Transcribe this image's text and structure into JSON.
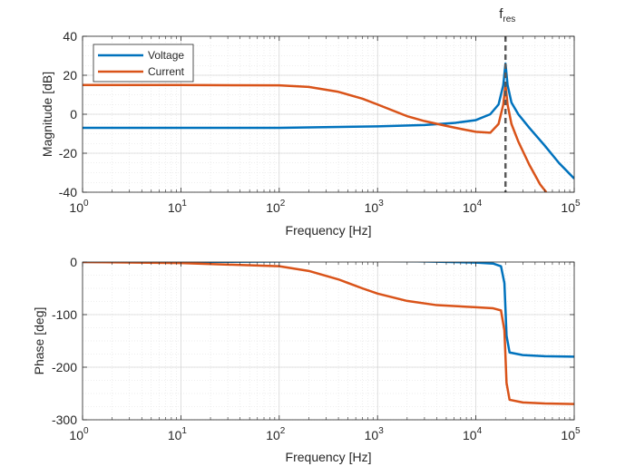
{
  "chart_data": [
    {
      "type": "line",
      "id": "magnitude",
      "xscale": "log",
      "xlim": [
        1,
        100000
      ],
      "ylim": [
        -40,
        40
      ],
      "xlabel": "Frequency [Hz]",
      "ylabel": "Magnitude [dB]",
      "grid": true,
      "minor_grid": true,
      "legend_position": "top-left",
      "x_ticks": [
        {
          "base": "10",
          "exp": "0",
          "v": 1
        },
        {
          "base": "10",
          "exp": "1",
          "v": 10
        },
        {
          "base": "10",
          "exp": "2",
          "v": 100
        },
        {
          "base": "10",
          "exp": "3",
          "v": 1000
        },
        {
          "base": "10",
          "exp": "4",
          "v": 10000
        },
        {
          "base": "10",
          "exp": "5",
          "v": 100000
        }
      ],
      "y_ticks": [
        {
          "v": 40,
          "label": "40"
        },
        {
          "v": 20,
          "label": "20"
        },
        {
          "v": 0,
          "label": "0"
        },
        {
          "v": -20,
          "label": "-20"
        },
        {
          "v": -40,
          "label": "-40"
        }
      ],
      "vline": {
        "x": 20000,
        "label": "f",
        "label_sub": "res",
        "color": "#595959",
        "style": "dashed"
      },
      "series": [
        {
          "name": "Voltage",
          "color": "#0072BD",
          "x": [
            1,
            10,
            100,
            1000,
            3000,
            6000,
            10000,
            14000,
            17000,
            19000,
            20000,
            21000,
            23000,
            27000,
            35000,
            50000,
            70000,
            100000
          ],
          "y": [
            -7,
            -7,
            -7,
            -6.2,
            -5.5,
            -4.5,
            -3,
            0,
            5,
            15,
            26,
            15,
            6,
            0,
            -7,
            -16,
            -25,
            -33
          ]
        },
        {
          "name": "Current",
          "color": "#D95319",
          "x": [
            1,
            10,
            100,
            200,
            400,
            700,
            1000,
            2000,
            3000,
            5000,
            7000,
            10000,
            14000,
            17000,
            19000,
            20000,
            21000,
            23000,
            27000,
            35000,
            45000,
            52000
          ],
          "y": [
            15,
            15,
            14.8,
            14,
            11.5,
            8,
            5,
            -1,
            -3.5,
            -6,
            -7.5,
            -9,
            -9.5,
            -5,
            5,
            15,
            5,
            -5,
            -14,
            -26,
            -36,
            -40
          ]
        }
      ]
    },
    {
      "type": "line",
      "id": "phase",
      "xscale": "log",
      "xlim": [
        1,
        100000
      ],
      "ylim": [
        -300,
        0
      ],
      "xlabel": "Frequency [Hz]",
      "ylabel": "Phase [deg]",
      "grid": true,
      "minor_grid": true,
      "x_ticks": [
        {
          "base": "10",
          "exp": "0",
          "v": 1
        },
        {
          "base": "10",
          "exp": "1",
          "v": 10
        },
        {
          "base": "10",
          "exp": "2",
          "v": 100
        },
        {
          "base": "10",
          "exp": "3",
          "v": 1000
        },
        {
          "base": "10",
          "exp": "4",
          "v": 10000
        },
        {
          "base": "10",
          "exp": "5",
          "v": 100000
        }
      ],
      "y_ticks": [
        {
          "v": 0,
          "label": "0"
        },
        {
          "v": -100,
          "label": "-100"
        },
        {
          "v": -200,
          "label": "-200"
        },
        {
          "v": -300,
          "label": "-300"
        }
      ],
      "series": [
        {
          "name": "Voltage",
          "color": "#0072BD",
          "x": [
            1,
            10,
            100,
            300,
            1000,
            3000,
            10000,
            15000,
            18000,
            19500,
            20000,
            20500,
            22000,
            30000,
            50000,
            100000
          ],
          "y": [
            0,
            0,
            1,
            3,
            2.5,
            1,
            -1,
            -3,
            -8,
            -40,
            -90,
            -140,
            -172,
            -177,
            -179,
            -180
          ],
          "show_in_legend": false
        },
        {
          "name": "Current",
          "color": "#D95319",
          "x": [
            1,
            10,
            100,
            200,
            400,
            700,
            1000,
            2000,
            4000,
            10000,
            15000,
            18000,
            19500,
            20000,
            20500,
            22000,
            30000,
            50000,
            100000
          ],
          "y": [
            0,
            -2,
            -8,
            -17,
            -33,
            -50,
            -60,
            -74,
            -82,
            -86,
            -88,
            -92,
            -130,
            -180,
            -230,
            -262,
            -267,
            -269,
            -270
          ],
          "show_in_legend": false
        }
      ]
    }
  ]
}
